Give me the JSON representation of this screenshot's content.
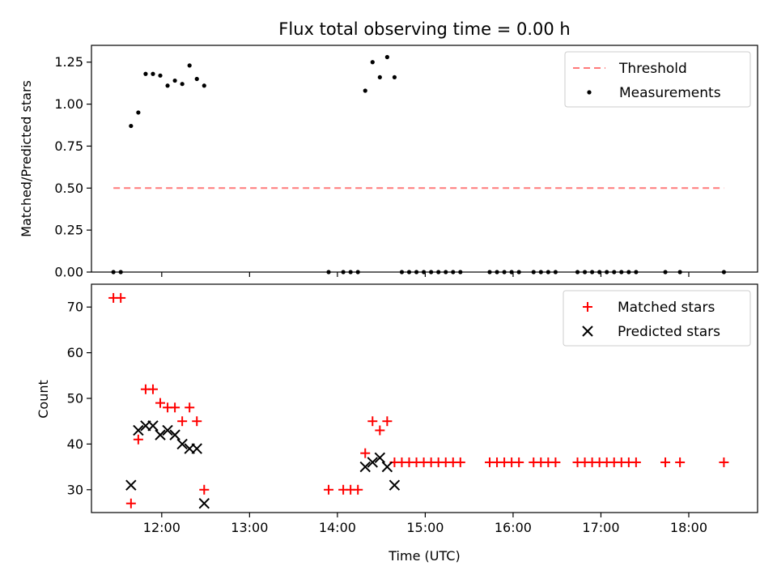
{
  "chart_data": [
    {
      "type": "scatter",
      "title": "Flux total observing time = 0.00 h",
      "ylabel": "Matched/Predicted stars",
      "xlabel": "",
      "xlim": [
        "11:12",
        "18:47"
      ],
      "ylim": [
        0,
        1.35
      ],
      "x_tick_labels_visible": false,
      "yticks": [
        0,
        0.25,
        0.5,
        0.75,
        1.0,
        1.25
      ],
      "ytick_labels": [
        "0.00",
        "0.25",
        "0.50",
        "0.75",
        "1.00",
        "1.25"
      ],
      "legend": {
        "position": "top-right",
        "entries": [
          "Threshold",
          "Measurements"
        ]
      },
      "threshold": {
        "name": "Threshold",
        "value": 0.5,
        "x_range": [
          "11:27",
          "18:24"
        ],
        "color": "#ff7a7a",
        "style": "dashed"
      },
      "series": [
        {
          "name": "Measurements",
          "marker": "dot",
          "color": "#000000",
          "x": [
            "11:27",
            "11:32",
            "11:39",
            "11:44",
            "11:49",
            "11:54",
            "11:59",
            "12:04",
            "12:09",
            "12:14",
            "12:19",
            "12:24",
            "12:29",
            "13:54",
            "14:04",
            "14:09",
            "14:14",
            "14:19",
            "14:24",
            "14:29",
            "14:34",
            "14:39",
            "14:44",
            "14:49",
            "14:54",
            "14:59",
            "15:04",
            "15:09",
            "15:14",
            "15:19",
            "15:24",
            "15:44",
            "15:49",
            "15:54",
            "15:59",
            "16:04",
            "16:14",
            "16:19",
            "16:24",
            "16:29",
            "16:44",
            "16:49",
            "16:54",
            "16:59",
            "17:04",
            "17:09",
            "17:14",
            "17:19",
            "17:24",
            "17:44",
            "17:54",
            "18:24"
          ],
          "y": [
            0,
            0,
            0.87,
            0.95,
            1.18,
            1.18,
            1.17,
            1.11,
            1.14,
            1.12,
            1.23,
            1.15,
            1.11,
            0,
            0,
            0,
            0,
            1.08,
            1.25,
            1.16,
            1.28,
            1.16,
            0,
            0,
            0,
            0,
            0,
            0,
            0,
            0,
            0,
            0,
            0,
            0,
            0,
            0,
            0,
            0,
            0,
            0,
            0,
            0,
            0,
            0,
            0,
            0,
            0,
            0,
            0,
            0,
            0,
            0
          ]
        }
      ]
    },
    {
      "type": "scatter",
      "title": "",
      "xlabel": "Time (UTC)",
      "ylabel": "Count",
      "xlim": [
        "11:12",
        "18:47"
      ],
      "ylim": [
        25,
        75
      ],
      "xticks": [
        "12:00",
        "13:00",
        "14:00",
        "15:00",
        "16:00",
        "17:00",
        "18:00"
      ],
      "yticks": [
        30,
        40,
        50,
        60,
        70
      ],
      "legend": {
        "position": "top-right",
        "entries": [
          "Matched stars",
          "Predicted stars"
        ]
      },
      "series": [
        {
          "name": "Matched stars",
          "marker": "plus",
          "color": "#ff0000",
          "x": [
            "11:27",
            "11:32",
            "11:39",
            "11:44",
            "11:49",
            "11:54",
            "11:59",
            "12:04",
            "12:09",
            "12:14",
            "12:19",
            "12:24",
            "12:29",
            "13:54",
            "14:04",
            "14:09",
            "14:14",
            "14:19",
            "14:24",
            "14:29",
            "14:34",
            "14:39",
            "14:44",
            "14:49",
            "14:54",
            "14:59",
            "15:04",
            "15:09",
            "15:14",
            "15:19",
            "15:24",
            "15:44",
            "15:49",
            "15:54",
            "15:59",
            "16:04",
            "16:14",
            "16:19",
            "16:24",
            "16:29",
            "16:44",
            "16:49",
            "16:54",
            "16:59",
            "17:04",
            "17:09",
            "17:14",
            "17:19",
            "17:24",
            "17:44",
            "17:54",
            "18:24"
          ],
          "y": [
            72,
            72,
            27,
            41,
            52,
            52,
            49,
            48,
            48,
            45,
            48,
            45,
            30,
            30,
            30,
            30,
            30,
            38,
            45,
            43,
            45,
            36,
            36,
            36,
            36,
            36,
            36,
            36,
            36,
            36,
            36,
            36,
            36,
            36,
            36,
            36,
            36,
            36,
            36,
            36,
            36,
            36,
            36,
            36,
            36,
            36,
            36,
            36,
            36,
            36,
            36,
            36
          ]
        },
        {
          "name": "Predicted stars",
          "marker": "x",
          "color": "#000000",
          "x": [
            "11:39",
            "11:44",
            "11:49",
            "11:54",
            "11:59",
            "12:04",
            "12:09",
            "12:14",
            "12:19",
            "12:24",
            "12:29",
            "14:19",
            "14:24",
            "14:29",
            "14:34",
            "14:39"
          ],
          "y": [
            31,
            43,
            44,
            44,
            42,
            43,
            42,
            40,
            39,
            39,
            27,
            35,
            36,
            37,
            35,
            31
          ]
        }
      ]
    }
  ]
}
